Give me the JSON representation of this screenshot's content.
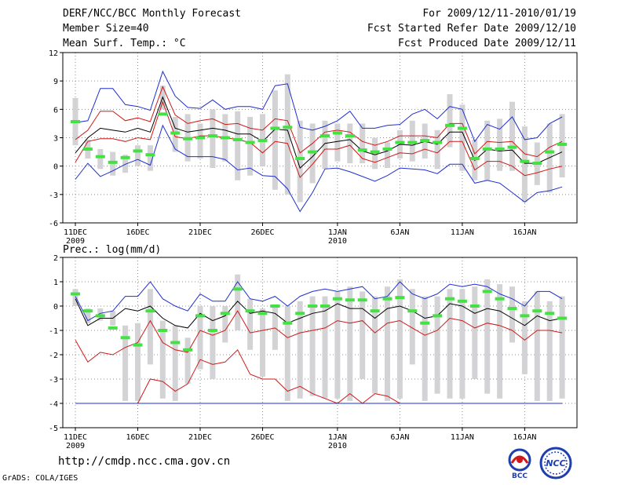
{
  "header": {
    "left": [
      "DERF/NCC/BCC Monthly Forecast",
      "Member Size=40",
      "Mean Surf. Temp.: °C"
    ],
    "right": [
      "For 2009/12/11-2010/01/19",
      "Fcst Started Refer Date 2009/12/10",
      "Fcst Produced Date 2009/12/11"
    ]
  },
  "footer": {
    "url": "http://cmdp.ncc.cma.gov.cn",
    "grads": "GrADS: COLA/IGES"
  },
  "logos": {
    "bcc": "BCC",
    "ncc": "NCC"
  },
  "colors": {
    "grid": "#8c8c8c",
    "box": "#d3d3d6",
    "mean": "#44e044",
    "envelope": "#1f2fd0",
    "spread": "#d01818",
    "center": "#000000"
  },
  "chart_data": [
    {
      "type": "line",
      "title": "Mean Surf. Temp.: °C",
      "ylim": [
        -6,
        12
      ],
      "yticks": [
        -6,
        -3,
        0,
        3,
        6,
        9,
        12
      ],
      "xticks": [
        {
          "i": 0,
          "label": "11DEC",
          "sub": "2009"
        },
        {
          "i": 5,
          "label": "16DEC"
        },
        {
          "i": 10,
          "label": "21DEC"
        },
        {
          "i": 15,
          "label": "26DEC"
        },
        {
          "i": 21,
          "label": "1JAN",
          "sub": "2010"
        },
        {
          "i": 26,
          "label": "6JAN"
        },
        {
          "i": 31,
          "label": "11JAN"
        },
        {
          "i": 36,
          "label": "16JAN"
        }
      ],
      "box_low": [
        2.2,
        0.8,
        -0.3,
        -1.0,
        -0.7,
        0.0,
        -0.5,
        6.0,
        1.5,
        0.5,
        0.8,
        -0.2,
        0.5,
        -1.5,
        -1.0,
        0.0,
        -2.5,
        -3.0,
        -3.8,
        -1.8,
        -0.3,
        0.5,
        0.3,
        0.3,
        -0.3,
        -0.2,
        0.8,
        0.5,
        0.8,
        -0.3,
        2.0,
        -0.5,
        -1.5,
        -1.5,
        -0.5,
        -0.5,
        -3.8,
        -2.0,
        -2.8,
        -1.2
      ],
      "box_high": [
        7.2,
        2.8,
        1.8,
        1.5,
        1.2,
        2.2,
        2.2,
        8.5,
        5.2,
        5.5,
        4.5,
        6.0,
        5.5,
        5.8,
        5.2,
        5.5,
        8.0,
        9.7,
        4.8,
        4.5,
        4.8,
        4.5,
        4.5,
        4.5,
        3.0,
        2.5,
        3.8,
        4.8,
        4.5,
        3.8,
        7.6,
        6.5,
        2.8,
        4.8,
        5.0,
        6.8,
        4.2,
        2.5,
        4.5,
        5.5
      ],
      "mean": [
        4.7,
        1.8,
        1.0,
        0.4,
        0.9,
        1.6,
        1.2,
        5.5,
        3.5,
        2.9,
        3.0,
        3.2,
        3.0,
        2.8,
        2.5,
        2.7,
        4.0,
        4.1,
        0.8,
        1.5,
        3.2,
        3.5,
        3.2,
        1.7,
        1.5,
        1.8,
        2.5,
        2.5,
        2.7,
        2.5,
        4.3,
        4.0,
        0.8,
        1.8,
        1.8,
        2.0,
        0.5,
        0.3,
        1.5,
        2.3
      ],
      "series": [
        {
          "name": "max",
          "color": "#1f2fd0",
          "values": [
            4.6,
            4.8,
            8.2,
            8.2,
            6.5,
            6.3,
            5.9,
            10.0,
            7.4,
            6.2,
            6.1,
            7.0,
            6.0,
            6.3,
            6.3,
            6.0,
            8.5,
            8.7,
            4.1,
            3.8,
            4.2,
            4.8,
            5.8,
            4.0,
            4.0,
            4.3,
            4.4,
            5.5,
            6.0,
            5.0,
            6.3,
            6.0,
            2.6,
            4.4,
            3.9,
            5.2,
            2.8,
            3.0,
            4.5,
            5.2
          ]
        },
        {
          "name": "upper",
          "color": "#d01818",
          "values": [
            2.8,
            3.8,
            5.8,
            5.8,
            4.8,
            5.1,
            4.7,
            8.4,
            5.4,
            4.5,
            4.8,
            5.0,
            4.4,
            4.5,
            4.0,
            3.8,
            5.0,
            4.8,
            1.4,
            2.4,
            3.6,
            3.8,
            3.6,
            2.6,
            2.2,
            2.6,
            3.2,
            3.2,
            3.2,
            3.0,
            4.5,
            4.5,
            1.3,
            2.6,
            2.5,
            2.6,
            1.3,
            1.0,
            2.0,
            2.6
          ]
        },
        {
          "name": "center",
          "color": "#000000",
          "values": [
            1.4,
            3.0,
            4.0,
            3.8,
            3.6,
            4.0,
            3.6,
            7.3,
            4.0,
            3.6,
            3.8,
            4.0,
            3.8,
            3.4,
            3.4,
            2.6,
            3.9,
            3.8,
            -0.2,
            1.0,
            2.4,
            2.6,
            2.8,
            1.6,
            1.2,
            1.6,
            2.3,
            2.2,
            2.6,
            2.3,
            3.6,
            3.6,
            0.6,
            1.8,
            1.6,
            1.7,
            0.3,
            0.3,
            0.9,
            1.5
          ]
        },
        {
          "name": "lower",
          "color": "#d01818",
          "values": [
            0.4,
            2.6,
            2.9,
            2.9,
            2.6,
            3.0,
            2.8,
            6.8,
            3.1,
            2.9,
            3.2,
            3.2,
            3.0,
            2.8,
            2.5,
            1.4,
            2.6,
            2.4,
            -1.2,
            0.2,
            1.8,
            1.8,
            2.2,
            0.8,
            0.4,
            0.9,
            1.4,
            1.3,
            1.8,
            1.4,
            2.6,
            2.6,
            -0.4,
            0.5,
            0.5,
            0.0,
            -1.0,
            -0.7,
            -0.3,
            0.0
          ]
        },
        {
          "name": "min",
          "color": "#1f2fd0",
          "values": [
            -1.4,
            0.3,
            -1.1,
            -0.5,
            0.2,
            0.7,
            0.1,
            4.3,
            1.8,
            1.0,
            1.0,
            1.0,
            0.7,
            -0.4,
            -0.2,
            -1.0,
            -1.1,
            -2.4,
            -4.8,
            -2.8,
            -0.3,
            -0.2,
            -0.6,
            -1.1,
            -1.6,
            -1.0,
            -0.2,
            -0.3,
            -0.4,
            -0.8,
            0.2,
            0.2,
            -1.8,
            -1.5,
            -1.8,
            -2.8,
            -3.8,
            -2.8,
            -2.6,
            -2.2
          ]
        }
      ]
    },
    {
      "type": "line",
      "title": "Prec.: log(mm/d)",
      "ylim": [
        -5,
        2
      ],
      "yticks": [
        -5,
        -4,
        -3,
        -2,
        -1,
        0,
        1,
        2
      ],
      "xticks": [
        {
          "i": 0,
          "label": "11DEC",
          "sub": "2009"
        },
        {
          "i": 5,
          "label": "16DEC"
        },
        {
          "i": 10,
          "label": "21DEC"
        },
        {
          "i": 15,
          "label": "26DEC"
        },
        {
          "i": 21,
          "label": "1JAN",
          "sub": "2010"
        },
        {
          "i": 26,
          "label": "6JAN"
        },
        {
          "i": 31,
          "label": "11JAN"
        },
        {
          "i": 36,
          "label": "16JAN"
        }
      ],
      "box_low": [
        0.0,
        -0.7,
        -0.6,
        -0.8,
        -3.9,
        -3.9,
        -2.4,
        -3.8,
        -3.9,
        -3.2,
        -2.6,
        -3.0,
        -1.5,
        -1.0,
        -1.8,
        -2.9,
        -1.8,
        -3.9,
        -3.8,
        -3.7,
        -3.8,
        -3.8,
        -3.9,
        -3.0,
        -3.6,
        -3.9,
        -3.8,
        -2.4,
        -3.9,
        -3.6,
        -3.8,
        -3.8,
        -3.0,
        -3.6,
        -3.8,
        -1.5,
        -2.8,
        -3.9,
        -3.9,
        -3.8
      ],
      "box_high": [
        0.7,
        -0.1,
        -0.1,
        -0.2,
        -0.8,
        -0.7,
        0.7,
        -0.6,
        -0.8,
        -1.3,
        0.0,
        0.0,
        0.0,
        1.3,
        0.3,
        -0.1,
        0.0,
        0.0,
        0.2,
        0.4,
        0.4,
        0.6,
        0.8,
        0.6,
        0.4,
        0.8,
        1.1,
        0.7,
        0.4,
        0.4,
        0.7,
        0.7,
        0.8,
        1.1,
        0.9,
        0.8,
        0.2,
        0.6,
        0.2,
        0.4
      ],
      "mean": [
        0.5,
        -0.2,
        -0.4,
        -0.9,
        -1.3,
        -1.6,
        -0.2,
        -1.0,
        -1.5,
        -1.8,
        -0.4,
        -1.0,
        -0.3,
        0.7,
        -0.2,
        -0.3,
        0.0,
        -0.7,
        -0.3,
        0.0,
        0.0,
        0.3,
        0.25,
        0.25,
        -0.2,
        0.3,
        0.35,
        -0.2,
        -0.7,
        -0.4,
        0.3,
        0.2,
        0.0,
        0.6,
        0.3,
        -0.1,
        -0.4,
        -0.2,
        -0.3,
        -0.5
      ],
      "series": [
        {
          "name": "max",
          "color": "#1f2fd0",
          "values": [
            0.4,
            -0.6,
            -0.3,
            -0.2,
            0.4,
            0.4,
            1.0,
            0.3,
            0.0,
            -0.2,
            0.5,
            0.2,
            0.2,
            1.0,
            0.3,
            0.2,
            0.4,
            0.0,
            0.4,
            0.6,
            0.7,
            0.6,
            0.7,
            0.8,
            0.3,
            0.4,
            1.0,
            0.5,
            0.3,
            0.5,
            0.9,
            0.8,
            0.9,
            0.8,
            0.5,
            0.3,
            0.0,
            0.6,
            0.6,
            0.3
          ]
        },
        {
          "name": "center",
          "color": "#000000",
          "values": [
            0.3,
            -0.8,
            -0.5,
            -0.5,
            -0.1,
            -0.2,
            0.0,
            -0.5,
            -0.8,
            -0.9,
            -0.3,
            -0.6,
            -0.4,
            0.2,
            -0.3,
            -0.2,
            -0.3,
            -0.7,
            -0.5,
            -0.3,
            -0.2,
            0.1,
            -0.1,
            -0.1,
            -0.5,
            -0.1,
            0.0,
            -0.2,
            -0.5,
            -0.4,
            0.1,
            0.0,
            -0.3,
            -0.1,
            -0.2,
            -0.5,
            -0.8,
            -0.4,
            -0.6,
            -0.5
          ]
        },
        {
          "name": "upper",
          "color": "#d01818",
          "values": [
            -1.4,
            -2.3,
            -1.9,
            -2.0,
            -1.7,
            -1.5,
            -0.6,
            -1.5,
            -1.8,
            -1.9,
            -1.0,
            -1.2,
            -1.0,
            -0.2,
            -1.1,
            -1.0,
            -0.9,
            -1.3,
            -1.1,
            -1.0,
            -0.9,
            -0.6,
            -0.7,
            -0.6,
            -1.1,
            -0.7,
            -0.6,
            -0.9,
            -1.2,
            -1.0,
            -0.5,
            -0.6,
            -0.9,
            -0.7,
            -0.8,
            -1.0,
            -1.4,
            -1.0,
            -1.0,
            -1.1
          ]
        },
        {
          "name": "lower",
          "color": "#d01818",
          "values": [
            -4.0,
            -4.0,
            -4.0,
            -4.0,
            -4.0,
            -4.0,
            -3.0,
            -3.1,
            -3.5,
            -3.2,
            -2.2,
            -2.4,
            -2.3,
            -1.8,
            -2.8,
            -3.0,
            -3.0,
            -3.5,
            -3.3,
            -3.6,
            -3.8,
            -4.0,
            -3.6,
            -4.0,
            -3.6,
            -3.7,
            -4.0,
            -4.0,
            -4.0,
            -4.0,
            -4.0,
            -4.0,
            -4.0,
            -4.0,
            -4.0,
            -4.0,
            -4.0,
            -4.0,
            -4.0,
            -4.0
          ]
        },
        {
          "name": "min",
          "color": "#1f2fd0",
          "values": [
            -4.0,
            -4.0,
            -4.0,
            -4.0,
            -4.0,
            -4.0,
            -4.0,
            -4.0,
            -4.0,
            -4.0,
            -4.0,
            -4.0,
            -4.0,
            -4.0,
            -4.0,
            -4.0,
            -4.0,
            -4.0,
            -4.0,
            -4.0,
            -4.0,
            -4.0,
            -4.0,
            -4.0,
            -4.0,
            -4.0,
            -4.0,
            -4.0,
            -4.0,
            -4.0,
            -4.0,
            -4.0,
            -4.0,
            -4.0,
            -4.0,
            -4.0,
            -4.0,
            -4.0,
            -4.0,
            -4.0
          ]
        }
      ]
    }
  ]
}
